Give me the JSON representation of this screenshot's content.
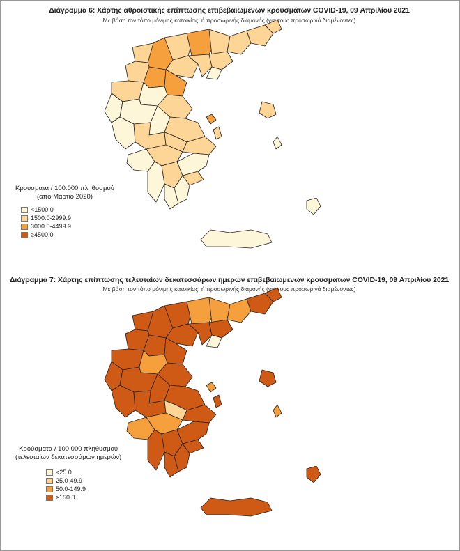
{
  "maps": [
    {
      "title": "Διάγραμμα 6: Χάρτης αθροιστικής επίπτωσης επιβεβαιωμένων κρουσμάτων COVID-19, 09 Απριλίου 2021",
      "subtitle": "Με βάση τον τόπο μόνιμης κατοικίας, ή προσωρινής διαμονής (για τους προσωρινά διαμένοντες)",
      "legend": {
        "title_line1": "Κρούσματα / 100.000 πληθυσμού",
        "title_line2": "(από Μάρτιο 2020)",
        "items": [
          {
            "label": "<1500.0",
            "color": "#fef6d8"
          },
          {
            "label": "1500.0-2999.9",
            "color": "#fcd597"
          },
          {
            "label": "3000.0-4499.9",
            "color": "#f6a03d"
          },
          {
            "label": "≥4500.0",
            "color": "#cf5a16"
          }
        ]
      }
    },
    {
      "title": "Διάγραμμα 7: Χάρτης επίπτωσης τελευταίων δεκατεσσάρων ημερών επιβεβαιωμένων κρουσμάτων COVID-19, 09 Απριλίου 2021",
      "subtitle": "Με βάση τον τόπο μόνιμης κατοικίας, ή προσωρινής διαμονής (για τους προσωρινά διαμένοντες)",
      "legend": {
        "title_line1": "Κρούσματα / 100.000 πληθυσμού",
        "title_line2": "(τελευταίων δεκατεσσάρων ημερών)",
        "items": [
          {
            "label": "<25.0",
            "color": "#fef6d8"
          },
          {
            "label": "25.0-49.9",
            "color": "#fcd597"
          },
          {
            "label": "50.0-149.9",
            "color": "#f6a03d"
          },
          {
            "label": "≥150.0",
            "color": "#cf5a16"
          }
        ]
      }
    }
  ]
}
